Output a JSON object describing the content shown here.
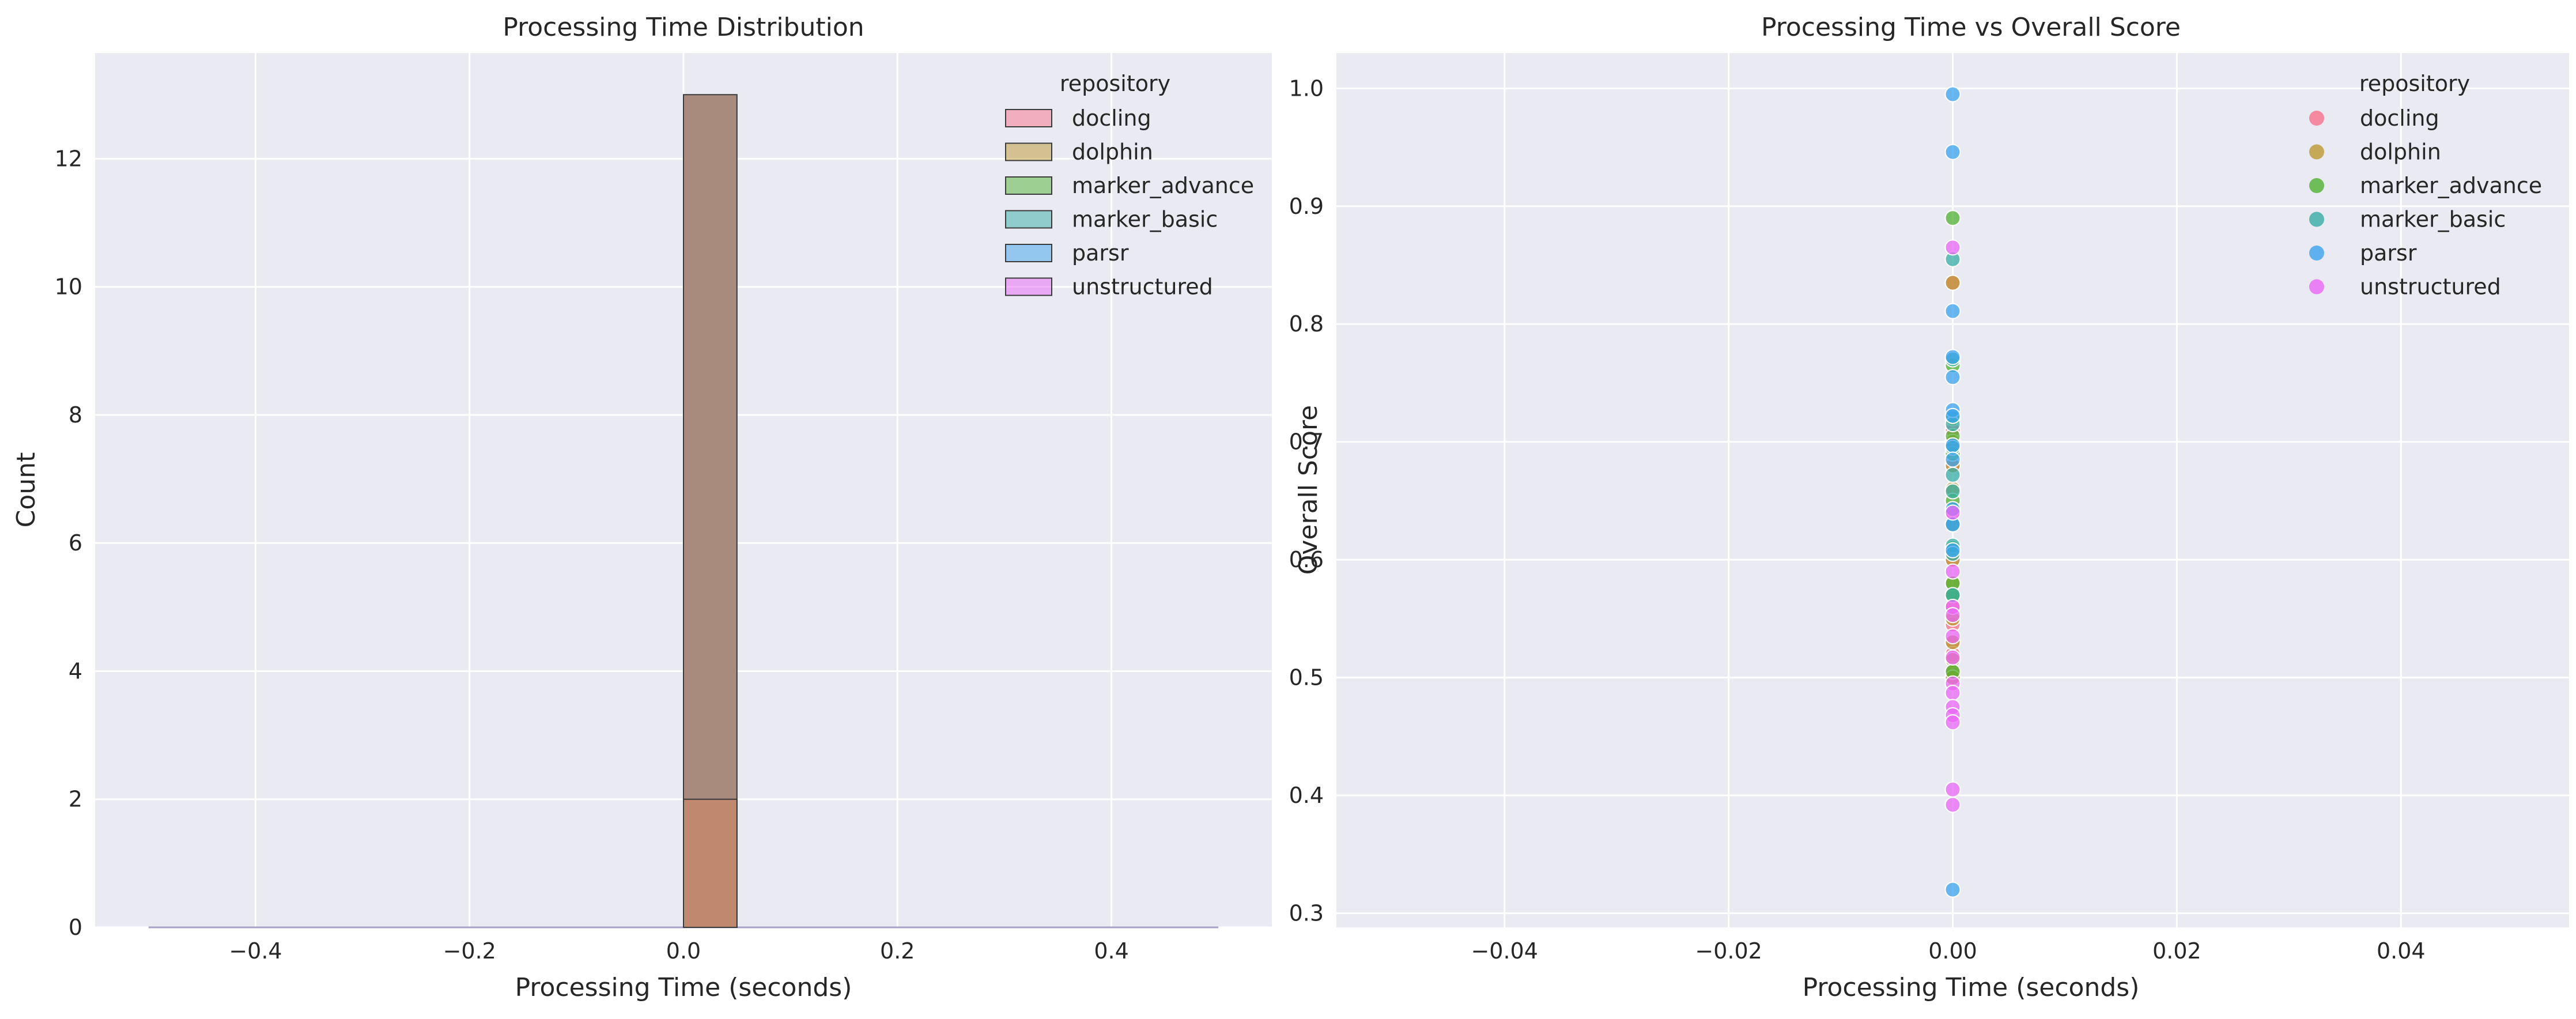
{
  "colors": {
    "docling": "#f77189",
    "dolphin": "#bb9832",
    "marker_advance": "#50b131",
    "marker_basic": "#36ada4",
    "parsr": "#3ba3ec",
    "unstructured": "#e866f4",
    "panel_bg": "#eaeaf2",
    "grid": "#ffffff",
    "text": "#262626"
  },
  "chart_data": [
    {
      "type": "bar",
      "subtype": "histogram",
      "title": "Processing Time Distribution",
      "xlabel": "Processing Time (seconds)",
      "ylabel": "Count",
      "xlim": [
        -0.55,
        0.55
      ],
      "ylim": [
        0,
        13.65
      ],
      "xticks": [
        -0.4,
        -0.2,
        0.0,
        0.2,
        0.4
      ],
      "xtick_labels": [
        "−0.4",
        "−0.2",
        "0.0",
        "0.2",
        "0.4"
      ],
      "yticks": [
        0,
        2,
        4,
        6,
        8,
        10,
        12
      ],
      "ytick_labels": [
        "0",
        "2",
        "4",
        "6",
        "8",
        "10",
        "12"
      ],
      "grid": true,
      "legend": {
        "title": "repository",
        "placement": "top-right",
        "entries": [
          "docling",
          "dolphin",
          "marker_advance",
          "marker_basic",
          "parsr",
          "unstructured"
        ]
      },
      "bin_range": [
        -0.5,
        0.5
      ],
      "bin_width": 0.05,
      "bars": [
        {
          "series": "dolphin",
          "x0": 0.0,
          "x1": 0.05,
          "value": 13
        },
        {
          "series": "docling",
          "x0": 0.0,
          "x1": 0.05,
          "value": 2
        }
      ]
    },
    {
      "type": "scatter",
      "title": "Processing Time vs Overall Score",
      "xlabel": "Processing Time (seconds)",
      "ylabel": "Overall Score",
      "xlim": [
        -0.055,
        0.055
      ],
      "ylim": [
        0.288,
        1.03
      ],
      "xticks": [
        -0.04,
        -0.02,
        0.0,
        0.02,
        0.04
      ],
      "xtick_labels": [
        "−0.04",
        "−0.02",
        "0.00",
        "0.02",
        "0.04"
      ],
      "yticks": [
        0.3,
        0.4,
        0.5,
        0.6,
        0.7,
        0.8,
        0.9,
        1.0
      ],
      "ytick_labels": [
        "0.3",
        "0.4",
        "0.5",
        "0.6",
        "0.7",
        "0.8",
        "0.9",
        "1.0"
      ],
      "grid": true,
      "legend": {
        "title": "repository",
        "placement": "top-right",
        "entries": [
          "docling",
          "dolphin",
          "marker_advance",
          "marker_basic",
          "parsr",
          "unstructured"
        ]
      },
      "series": [
        {
          "name": "docling",
          "x": [
            0,
            0,
            0,
            0,
            0,
            0,
            0,
            0,
            0,
            0
          ],
          "y": [
            0.835,
            0.71,
            0.68,
            0.64,
            0.6,
            0.56,
            0.545,
            0.53,
            0.52,
            0.5
          ]
        },
        {
          "name": "dolphin",
          "x": [
            0,
            0,
            0,
            0,
            0,
            0,
            0,
            0,
            0,
            0,
            0,
            0,
            0
          ],
          "y": [
            0.835,
            0.7,
            0.68,
            0.66,
            0.63,
            0.6,
            0.58,
            0.57,
            0.55,
            0.53,
            0.515,
            0.505,
            0.5
          ]
        },
        {
          "name": "marker_advance",
          "x": [
            0,
            0,
            0,
            0,
            0,
            0,
            0,
            0,
            0,
            0
          ],
          "y": [
            0.89,
            0.765,
            0.72,
            0.705,
            0.69,
            0.65,
            0.61,
            0.58,
            0.57,
            0.505
          ]
        },
        {
          "name": "marker_basic",
          "x": [
            0,
            0,
            0,
            0,
            0,
            0,
            0,
            0,
            0,
            0
          ],
          "y": [
            0.855,
            0.77,
            0.715,
            0.695,
            0.672,
            0.658,
            0.63,
            0.612,
            0.605,
            0.57
          ]
        },
        {
          "name": "parsr",
          "x": [
            0,
            0,
            0,
            0,
            0,
            0,
            0,
            0,
            0,
            0,
            0,
            0,
            0
          ],
          "y": [
            0.995,
            0.946,
            0.811,
            0.772,
            0.755,
            0.727,
            0.722,
            0.697,
            0.685,
            0.643,
            0.63,
            0.608,
            0.32
          ]
        },
        {
          "name": "unstructured",
          "x": [
            0,
            0,
            0,
            0,
            0,
            0,
            0,
            0,
            0,
            0,
            0,
            0,
            0,
            0
          ],
          "y": [
            0.865,
            0.64,
            0.59,
            0.56,
            0.553,
            0.535,
            0.517,
            0.495,
            0.487,
            0.475,
            0.468,
            0.462,
            0.405,
            0.392
          ]
        }
      ]
    }
  ]
}
